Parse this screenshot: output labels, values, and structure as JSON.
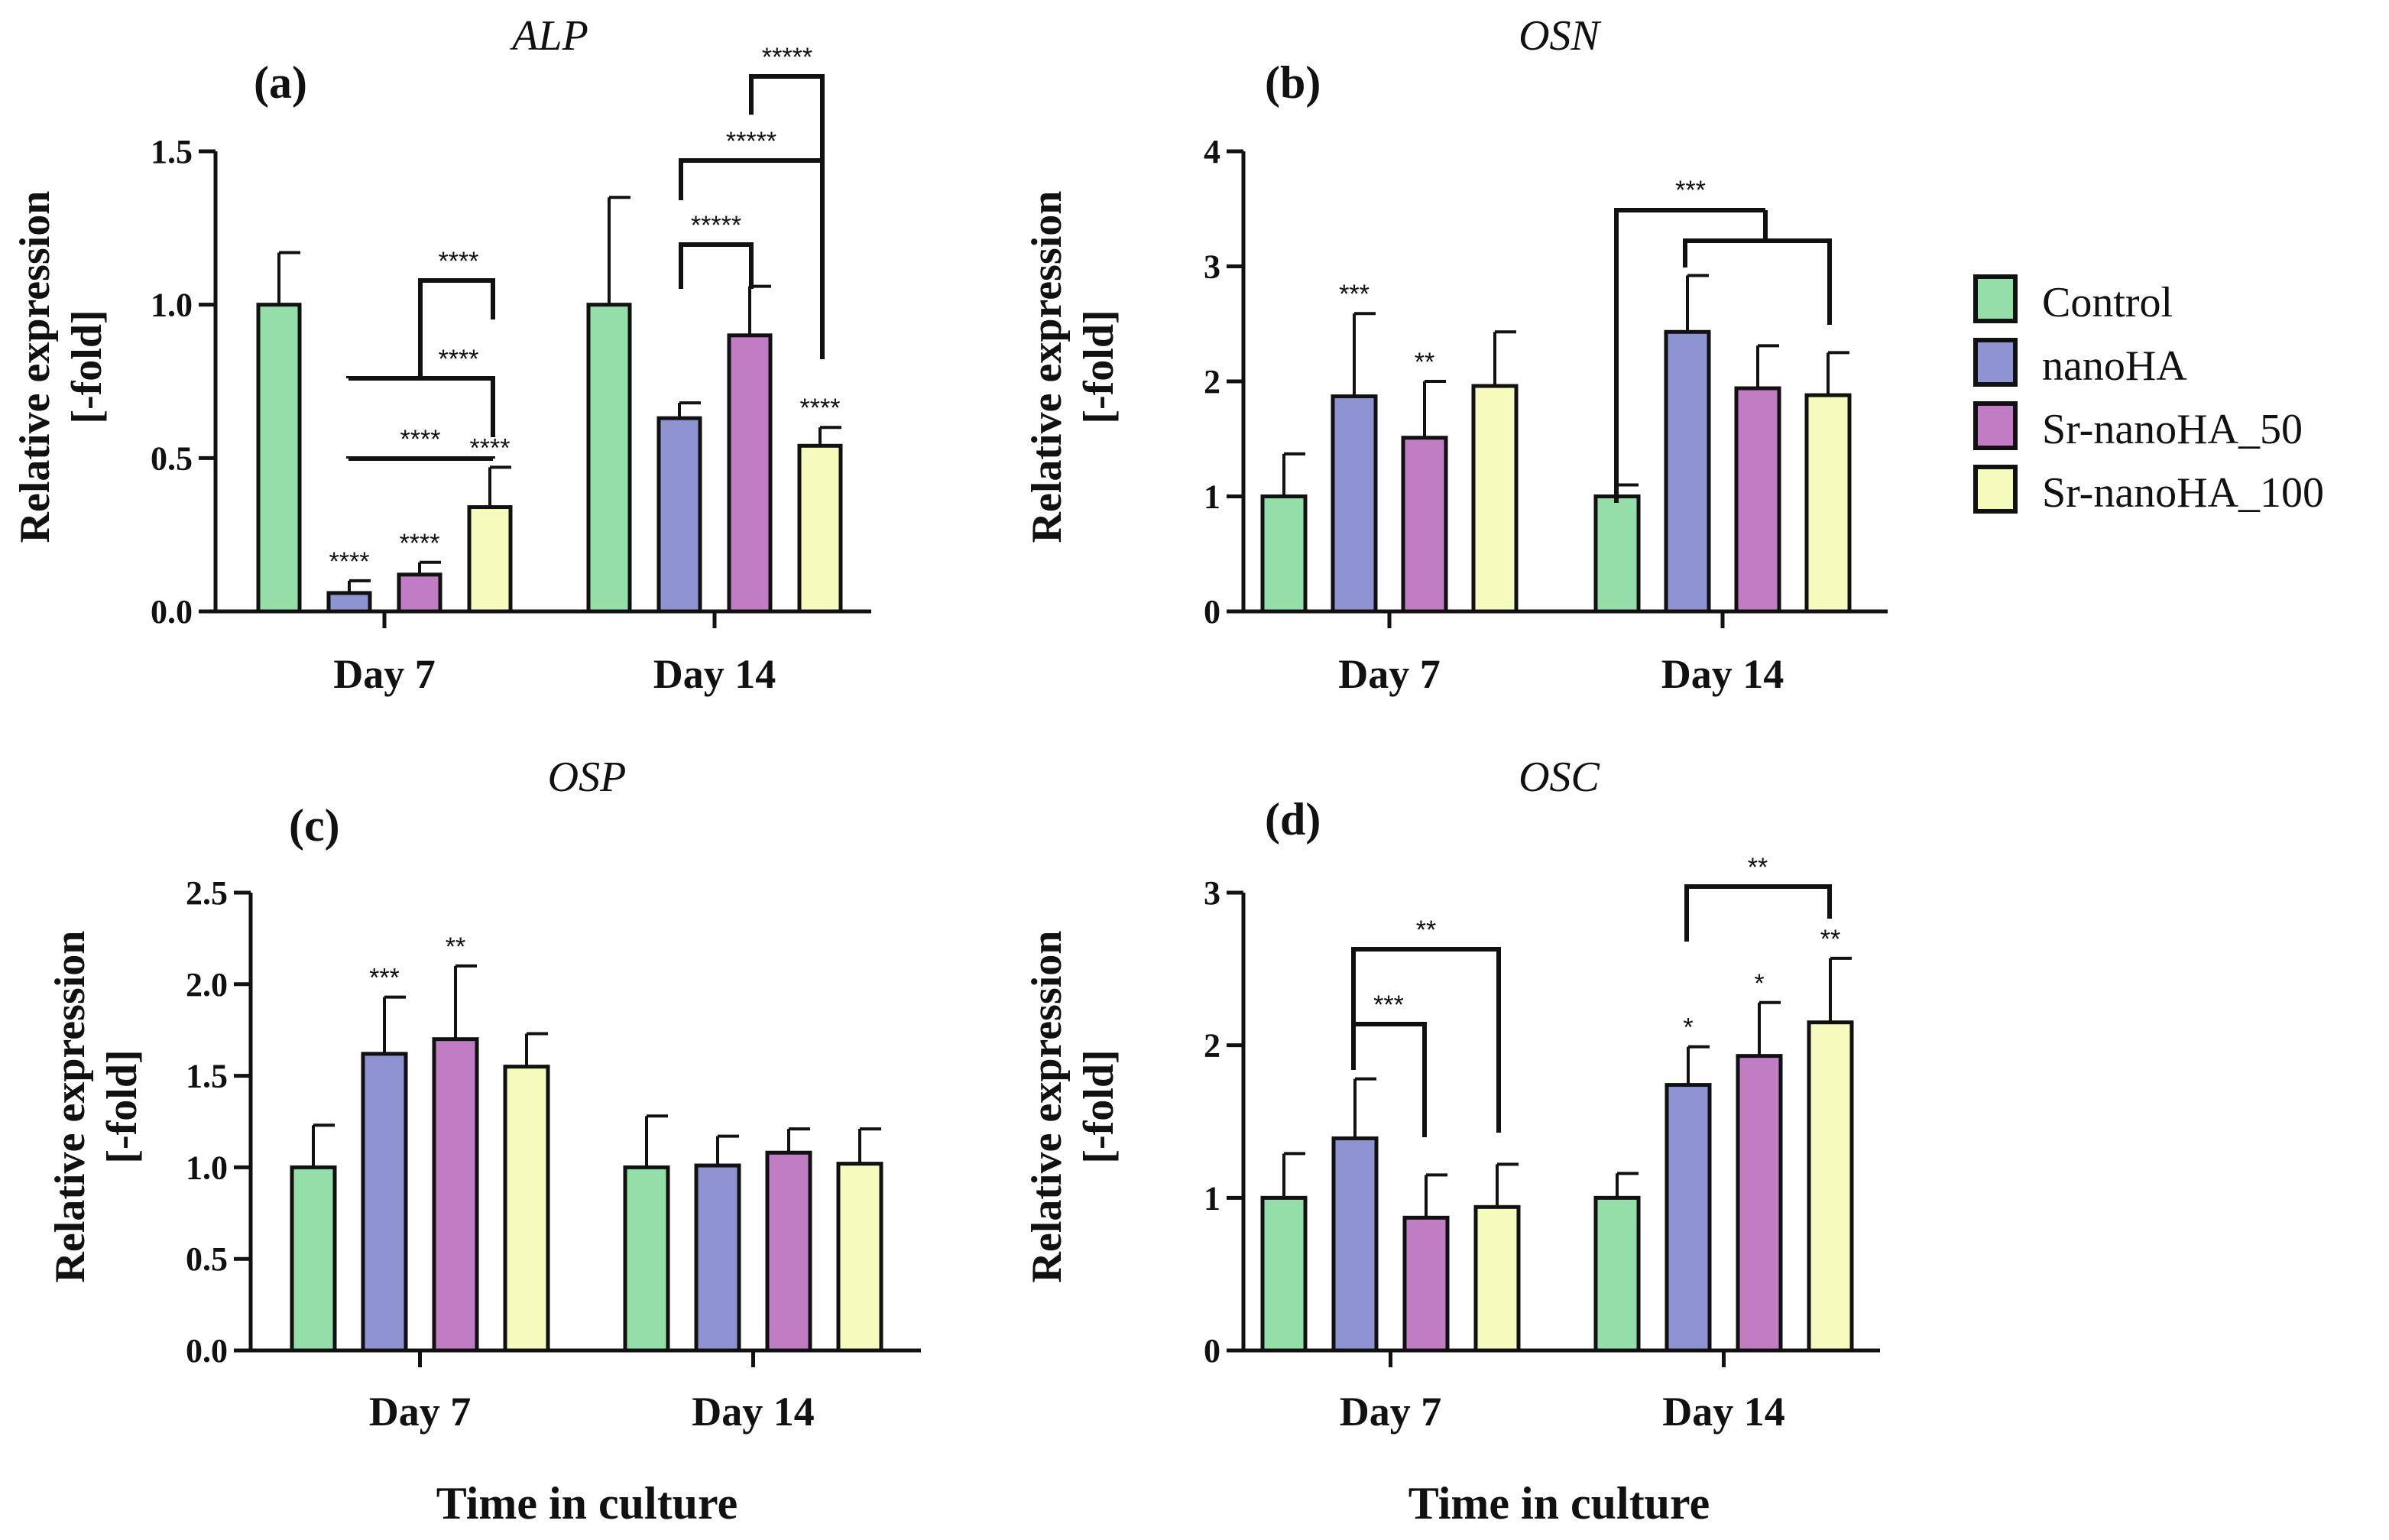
{
  "legend": [
    {
      "name": "Control",
      "color": "#93dea9"
    },
    {
      "name": "nanoHA",
      "color": "#8e94d2"
    },
    {
      "name": "Sr-nanoHA_50",
      "color": "#c07dc4"
    },
    {
      "name": "Sr-nanoHA_100",
      "color": "#f4fbbd"
    }
  ],
  "x_axis_title": "Time in culture",
  "chart_data": [
    {
      "type": "bar",
      "panel": "(a)",
      "title": "ALP",
      "ylabel": "Relative expression",
      "ylabel2": "[-fold]",
      "ylim": [
        0,
        1.5
      ],
      "yticks": [
        "0.0",
        "0.5",
        "1.0",
        "1.5"
      ],
      "categories": [
        "Day 7",
        "Day 14"
      ],
      "series": [
        {
          "name": "Control",
          "values": [
            1.0,
            1.0
          ],
          "errors": [
            0.17,
            0.35
          ],
          "sig": [
            "",
            ""
          ]
        },
        {
          "name": "nanoHA",
          "values": [
            0.06,
            0.63
          ],
          "errors": [
            0.04,
            0.05
          ],
          "sig": [
            "****",
            ""
          ]
        },
        {
          "name": "Sr-nanoHA_50",
          "values": [
            0.12,
            0.9
          ],
          "errors": [
            0.04,
            0.16
          ],
          "sig": [
            "****",
            ""
          ]
        },
        {
          "name": "Sr-nanoHA_100",
          "values": [
            0.34,
            0.54
          ],
          "errors": [
            0.13,
            0.06
          ],
          "sig": [
            "****",
            "****"
          ]
        }
      ],
      "comparisons": [
        {
          "label": "****",
          "from": [
            0,
            0
          ],
          "to": [
            0,
            2
          ]
        },
        {
          "label": "****",
          "from": [
            0,
            0
          ],
          "to": [
            0,
            3
          ]
        },
        {
          "label": "****",
          "from": [
            0,
            1
          ],
          "to": [
            0,
            3
          ]
        },
        {
          "label": "*****",
          "from": [
            1,
            1
          ],
          "to": [
            1,
            2
          ]
        },
        {
          "label": "*****",
          "from": [
            1,
            1
          ],
          "to": [
            1,
            3
          ]
        },
        {
          "label": "*****",
          "from": [
            1,
            2
          ],
          "to": [
            1,
            3
          ]
        }
      ]
    },
    {
      "type": "bar",
      "panel": "(b)",
      "title": "OSN",
      "ylabel": "Relative expression",
      "ylabel2": "[-fold]",
      "ylim": [
        0,
        4
      ],
      "yticks": [
        "0",
        "1",
        "2",
        "3",
        "4"
      ],
      "categories": [
        "Day 7",
        "Day 14"
      ],
      "series": [
        {
          "name": "Control",
          "values": [
            1.0,
            1.0
          ],
          "errors": [
            0.37,
            0.1
          ],
          "sig": [
            "",
            ""
          ]
        },
        {
          "name": "nanoHA",
          "values": [
            1.87,
            2.43
          ],
          "errors": [
            0.72,
            0.49
          ],
          "sig": [
            "***",
            ""
          ]
        },
        {
          "name": "Sr-nanoHA_50",
          "values": [
            1.51,
            1.94
          ],
          "errors": [
            0.49,
            0.37
          ],
          "sig": [
            "**",
            ""
          ]
        },
        {
          "name": "Sr-nanoHA_100",
          "values": [
            1.96,
            1.88
          ],
          "errors": [
            0.47,
            0.37
          ],
          "sig": [
            "",
            ""
          ]
        }
      ],
      "comparisons": [
        {
          "label": "***",
          "from": [
            1,
            0
          ],
          "to": [
            1,
            3
          ]
        }
      ]
    },
    {
      "type": "bar",
      "panel": "(c)",
      "title": "OSP",
      "ylabel": "Relative expression",
      "ylabel2": "[-fold]",
      "ylim": [
        0,
        2.5
      ],
      "yticks": [
        "0.0",
        "0.5",
        "1.0",
        "1.5",
        "2.0",
        "2.5"
      ],
      "categories": [
        "Day 7",
        "Day 14"
      ],
      "series": [
        {
          "name": "Control",
          "values": [
            1.0,
            1.0
          ],
          "errors": [
            0.23,
            0.28
          ],
          "sig": [
            "",
            ""
          ]
        },
        {
          "name": "nanoHA",
          "values": [
            1.62,
            1.01
          ],
          "errors": [
            0.31,
            0.16
          ],
          "sig": [
            "***",
            ""
          ]
        },
        {
          "name": "Sr-nanoHA_50",
          "values": [
            1.7,
            1.08
          ],
          "errors": [
            0.4,
            0.13
          ],
          "sig": [
            "**",
            ""
          ]
        },
        {
          "name": "Sr-nanoHA_100",
          "values": [
            1.55,
            1.02
          ],
          "errors": [
            0.18,
            0.19
          ],
          "sig": [
            "",
            ""
          ]
        }
      ],
      "comparisons": []
    },
    {
      "type": "bar",
      "panel": "(d)",
      "title": "OSC",
      "ylabel": "Relative expression",
      "ylabel2": "[-fold]",
      "ylim": [
        0,
        3
      ],
      "yticks": [
        "0",
        "1",
        "2",
        "3"
      ],
      "categories": [
        "Day 7",
        "Day 14"
      ],
      "series": [
        {
          "name": "Control",
          "values": [
            1.0,
            1.0
          ],
          "errors": [
            0.29,
            0.16
          ],
          "sig": [
            "",
            ""
          ]
        },
        {
          "name": "nanoHA",
          "values": [
            1.39,
            1.74
          ],
          "errors": [
            0.39,
            0.25
          ],
          "sig": [
            "",
            "*"
          ]
        },
        {
          "name": "Sr-nanoHA_50",
          "values": [
            0.87,
            1.93
          ],
          "errors": [
            0.28,
            0.35
          ],
          "sig": [
            "",
            "*"
          ]
        },
        {
          "name": "Sr-nanoHA_100",
          "values": [
            0.94,
            2.15
          ],
          "errors": [
            0.28,
            0.42
          ],
          "sig": [
            "",
            "**"
          ]
        }
      ],
      "comparisons": [
        {
          "label": "***",
          "from": [
            0,
            1
          ],
          "to": [
            0,
            2
          ]
        },
        {
          "label": "**",
          "from": [
            0,
            1
          ],
          "to": [
            0,
            3
          ]
        },
        {
          "label": "**",
          "from": [
            1,
            1
          ],
          "to": [
            1,
            3
          ]
        }
      ]
    }
  ]
}
